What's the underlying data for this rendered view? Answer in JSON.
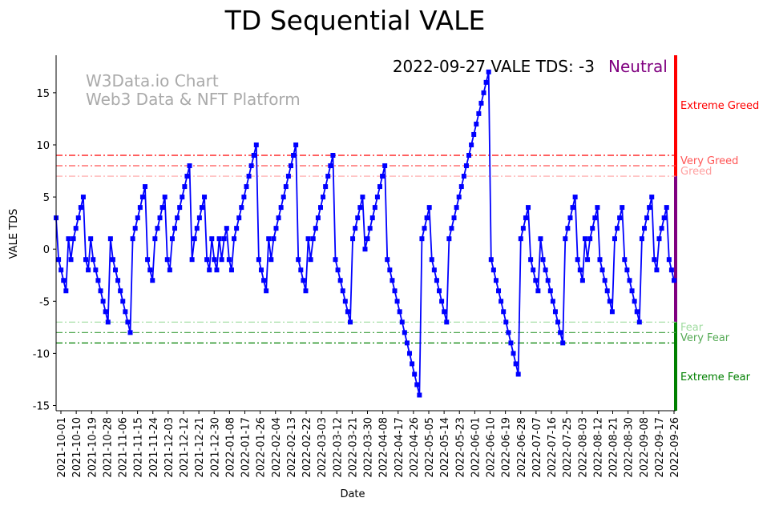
{
  "chart_data": {
    "type": "line",
    "title": "TD Sequential VALE",
    "annotation": "2022-09-27 VALE TDS: -3",
    "status": "Neutral",
    "status_color": "#800080",
    "watermark": [
      "W3Data.io Chart",
      "Web3 Data & NFT Platform"
    ],
    "xlabel": "Date",
    "ylabel": "VALE TDS",
    "ylim": [
      -15.5,
      18.6
    ],
    "yticks": [
      -15,
      -10,
      -5,
      0,
      5,
      10,
      15
    ],
    "xticks": [
      "2021-10-01",
      "2021-10-10",
      "2021-10-19",
      "2021-10-28",
      "2021-11-06",
      "2021-11-15",
      "2021-11-24",
      "2021-12-03",
      "2021-12-12",
      "2021-12-21",
      "2021-12-30",
      "2022-01-08",
      "2022-01-17",
      "2022-01-26",
      "2022-02-04",
      "2022-02-13",
      "2022-02-22",
      "2022-03-03",
      "2022-03-12",
      "2022-03-21",
      "2022-03-30",
      "2022-04-08",
      "2022-04-17",
      "2022-04-26",
      "2022-05-05",
      "2022-05-14",
      "2022-05-23",
      "2022-06-01",
      "2022-06-10",
      "2022-06-19",
      "2022-06-28",
      "2022-07-07",
      "2022-07-16",
      "2022-07-25",
      "2022-08-03",
      "2022-08-12",
      "2022-08-21",
      "2022-08-30",
      "2022-09-08",
      "2022-09-17",
      "2022-09-26"
    ],
    "series": [
      {
        "name": "VALE TDS",
        "color": "#0000ff",
        "values": [
          3,
          -1,
          -2,
          -3,
          -4,
          1,
          -1,
          1,
          2,
          3,
          4,
          5,
          -1,
          -2,
          1,
          -1,
          -2,
          -3,
          -4,
          -5,
          -6,
          -7,
          1,
          -1,
          -2,
          -3,
          -4,
          -5,
          -6,
          -7,
          -8,
          1,
          2,
          3,
          4,
          5,
          6,
          -1,
          -2,
          -3,
          1,
          2,
          3,
          4,
          5,
          -1,
          -2,
          1,
          2,
          3,
          4,
          5,
          6,
          7,
          8,
          -1,
          1,
          2,
          3,
          4,
          5,
          -1,
          -2,
          1,
          -1,
          -2,
          1,
          -1,
          1,
          2,
          -1,
          -2,
          1,
          2,
          3,
          4,
          5,
          6,
          7,
          8,
          9,
          10,
          -1,
          -2,
          -3,
          -4,
          1,
          -1,
          1,
          2,
          3,
          4,
          5,
          6,
          7,
          8,
          9,
          10,
          -1,
          -2,
          -3,
          -4,
          1,
          -1,
          1,
          2,
          3,
          4,
          5,
          6,
          7,
          8,
          9,
          -1,
          -2,
          -3,
          -4,
          -5,
          -6,
          -7,
          1,
          2,
          3,
          4,
          5,
          0,
          1,
          2,
          3,
          4,
          5,
          6,
          7,
          8,
          -1,
          -2,
          -3,
          -4,
          -5,
          -6,
          -7,
          -8,
          -9,
          -10,
          -11,
          -12,
          -13,
          -14,
          1,
          2,
          3,
          4,
          -1,
          -2,
          -3,
          -4,
          -5,
          -6,
          -7,
          1,
          2,
          3,
          4,
          5,
          6,
          7,
          8,
          9,
          10,
          11,
          12,
          13,
          14,
          15,
          16,
          17,
          -1,
          -2,
          -3,
          -4,
          -5,
          -6,
          -7,
          -8,
          -9,
          -10,
          -11,
          -12,
          1,
          2,
          3,
          4,
          -1,
          -2,
          -3,
          -4,
          1,
          -1,
          -2,
          -3,
          -4,
          -5,
          -6,
          -7,
          -8,
          -9,
          1,
          2,
          3,
          4,
          5,
          -1,
          -2,
          -3,
          1,
          -1,
          1,
          2,
          3,
          4,
          -1,
          -2,
          -3,
          -4,
          -5,
          -6,
          1,
          2,
          3,
          4,
          -1,
          -2,
          -3,
          -4,
          -5,
          -6,
          -7,
          1,
          2,
          3,
          4,
          5,
          -1,
          -2,
          1,
          2,
          3,
          4,
          -1,
          -2,
          -3
        ]
      }
    ],
    "thresholds": [
      {
        "value": 9,
        "label": "Extreme Greed",
        "color": "#ff0000"
      },
      {
        "value": 8,
        "label": "Very Greed",
        "color": "#ff5555"
      },
      {
        "value": 7,
        "label": "Greed",
        "color": "#ffa0a0"
      },
      {
        "value": -7,
        "label": "Fear",
        "color": "#a0dca0"
      },
      {
        "value": -8,
        "label": "Very Fear",
        "color": "#55aa55"
      },
      {
        "value": -9,
        "label": "Extreme Fear",
        "color": "#008000"
      }
    ]
  }
}
